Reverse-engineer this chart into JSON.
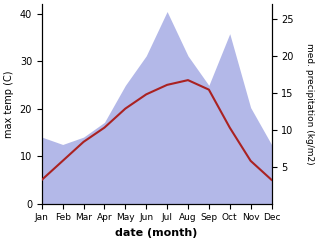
{
  "months": [
    "Jan",
    "Feb",
    "Mar",
    "Apr",
    "May",
    "Jun",
    "Jul",
    "Aug",
    "Sep",
    "Oct",
    "Nov",
    "Dec"
  ],
  "month_positions": [
    1,
    2,
    3,
    4,
    5,
    6,
    7,
    8,
    9,
    10,
    11,
    12
  ],
  "temperature": [
    5,
    9,
    13,
    16,
    20,
    23,
    25,
    26,
    24,
    16,
    9,
    5
  ],
  "precipitation": [
    9,
    8,
    9,
    11,
    16,
    20,
    26,
    20,
    16,
    23,
    13,
    8
  ],
  "temp_color": "#aa2222",
  "precip_color_fill": "#b3b8e8",
  "temp_ylim": [
    0,
    42
  ],
  "precip_ylim": [
    0,
    27
  ],
  "temp_yticks": [
    0,
    10,
    20,
    30,
    40
  ],
  "precip_yticks": [
    5,
    10,
    15,
    20,
    25
  ],
  "ylabel_left": "max temp (C)",
  "ylabel_right": "med. precipitation (kg/m2)",
  "xlabel": "date (month)",
  "fig_width": 3.18,
  "fig_height": 2.42,
  "dpi": 100
}
